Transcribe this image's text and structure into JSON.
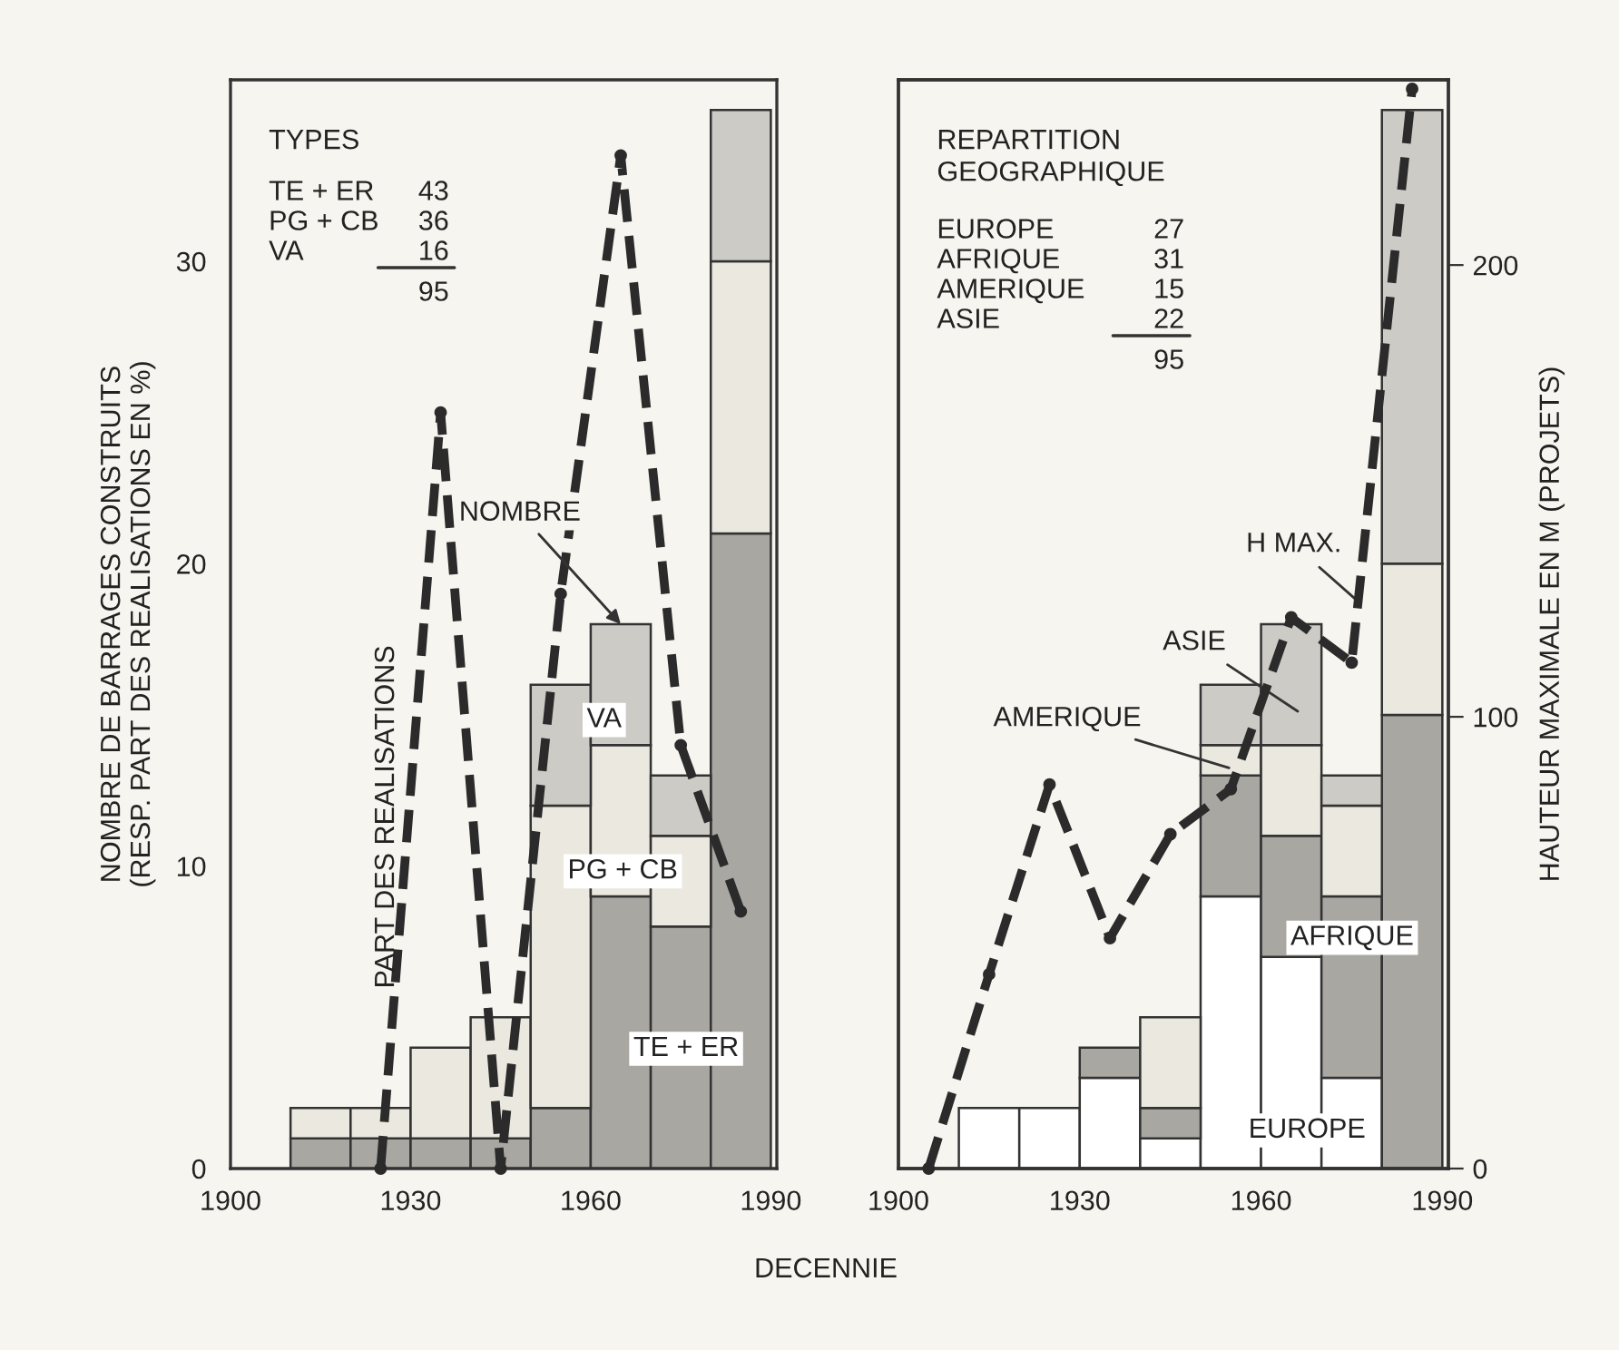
{
  "chart_data": [
    {
      "type": "bar",
      "stacked": true,
      "xlabel": "DECENNIE",
      "ylabel": "NOMBRE DE BARRAGES CONSTRUITS\n(RESP. PART DES REALISATIONS EN %)",
      "x": [
        1915,
        1925,
        1935,
        1945,
        1955,
        1965,
        1975,
        1985
      ],
      "xlim": [
        1900,
        1991
      ],
      "xticks": [
        1900,
        1930,
        1960,
        1990
      ],
      "ylim": [
        0,
        36
      ],
      "yticks": [
        0,
        10,
        20,
        30
      ],
      "marker": "circle",
      "line_style": "dashed",
      "series": [
        {
          "name": "TE + ER",
          "color": "#a9a7a2",
          "values": [
            1,
            1,
            1,
            1,
            2,
            9,
            8,
            21
          ]
        },
        {
          "name": "PG + CB",
          "color": "#ebe8df",
          "values": [
            1,
            1,
            3,
            4,
            10,
            5,
            3,
            9
          ]
        },
        {
          "name": "VA",
          "color": "#cdcbc6",
          "values": [
            0,
            0,
            0,
            0,
            4,
            4,
            2,
            5
          ]
        },
        {
          "name": "PART DES REALISATIONS",
          "type": "line",
          "color": "#2b2b2b",
          "x": [
            1925,
            1935,
            1945,
            1955,
            1965,
            1975,
            1985
          ],
          "values": [
            0,
            25,
            0,
            19,
            33.5,
            14,
            8.5
          ]
        }
      ],
      "annotations": [
        "TYPES",
        "TE + ER",
        "43",
        "PG + CB",
        "36",
        "VA",
        "16",
        "95",
        {
          "text": "NOMBRE",
          "x": 1965,
          "y": 18
        }
      ]
    },
    {
      "type": "bar",
      "stacked": true,
      "y2label": "HAUTEUR MAXIMALE EN M (PROJETS)",
      "x": [
        1915,
        1925,
        1935,
        1945,
        1955,
        1965,
        1975,
        1985
      ],
      "xlim": [
        1900,
        1991
      ],
      "xticks": [
        1900,
        1930,
        1960,
        1990
      ],
      "ylim": [
        0,
        36
      ],
      "y2lim": [
        0,
        241
      ],
      "y2ticks": [
        0,
        100,
        200
      ],
      "marker": "circle",
      "line_style": "dashed",
      "series": [
        {
          "name": "EUROPE",
          "color": "#ffffff",
          "values": [
            2,
            2,
            3,
            1,
            9,
            7,
            3,
            0
          ]
        },
        {
          "name": "AFRIQUE",
          "color": "#a9a7a2",
          "values": [
            0,
            0,
            1,
            1,
            4,
            4,
            6,
            15
          ]
        },
        {
          "name": "AMERIQUE",
          "color": "#ebe8df",
          "values": [
            0,
            0,
            0,
            3,
            1,
            3,
            3,
            5
          ]
        },
        {
          "name": "ASIE",
          "color": "#cdcbc6",
          "values": [
            0,
            0,
            0,
            0,
            2,
            4,
            1,
            15
          ]
        },
        {
          "name": "H MAX.",
          "type": "line",
          "axis": "y2",
          "color": "#2b2b2b",
          "x": [
            1905,
            1915,
            1925,
            1935,
            1945,
            1955,
            1965,
            1975,
            1985
          ],
          "values": [
            0,
            43,
            85,
            51,
            74,
            84,
            122,
            112,
            239
          ]
        }
      ],
      "annotations": [
        "REPARTITION\nGEOGRAPHIQUE",
        "EUROPE",
        "27",
        "AFRIQUE",
        "31",
        "AMERIQUE",
        "15",
        "ASIE",
        "22",
        "95"
      ]
    }
  ]
}
